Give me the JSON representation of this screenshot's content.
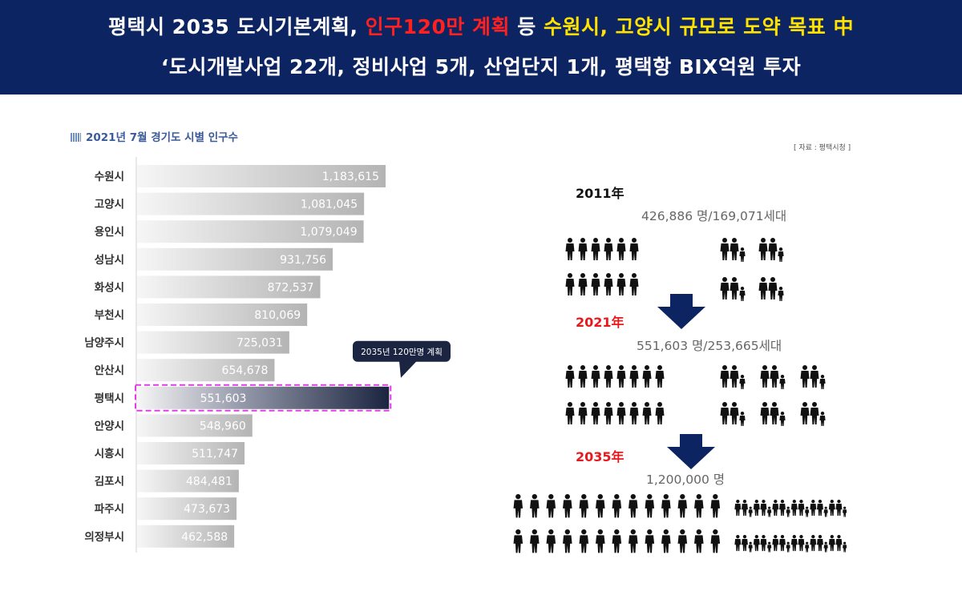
{
  "banner": {
    "line1_a": "평택시 2035 도시기본계획, ",
    "line1_b": "인구120만 계획",
    "line1_c": " 등 ",
    "line1_d": "수원시, 고양시 규모로 도약 목표 中",
    "line2": "‘도시개발사업 22개, 정비사업 5개, 산업단지 1개, 평택항 BIX억원 투자"
  },
  "source": "[ 자료 : 평택시청 ]",
  "chart_data": {
    "type": "bar",
    "orientation": "horizontal",
    "title": "2021년 7월 경기도 시별 인구수",
    "categories": [
      "수원시",
      "고양시",
      "용인시",
      "성남시",
      "화성시",
      "부천시",
      "남양주시",
      "안산시",
      "평택시",
      "안양시",
      "시흥시",
      "김포시",
      "파주시",
      "의정부시"
    ],
    "values": [
      1183615,
      1081045,
      1079049,
      931756,
      872537,
      810069,
      725031,
      654678,
      551603,
      548960,
      511747,
      484481,
      473673,
      462588
    ],
    "value_labels": [
      "1,183,615",
      "1,081,045",
      "1,079,049",
      "931,756",
      "872,537",
      "810,069",
      "725,031",
      "654,678",
      "551,603",
      "548,960",
      "511,747",
      "484,481",
      "473,673",
      "462,588"
    ],
    "highlight": {
      "category": "평택시",
      "target_value": 1200000,
      "callout": "2035년 120만명 계획"
    },
    "colors": {
      "bar": "#b4b4b4",
      "highlight_dark": "#1b2440",
      "highlight_border": "#e23be6",
      "callout": "#1b2440"
    }
  },
  "timeline": [
    {
      "year": "2011年",
      "stat": "426,886 명/169,071세대",
      "singles": 12,
      "families": 4
    },
    {
      "year": "2021年",
      "stat": "551,603 명/253,665세대",
      "singles": 16,
      "families": 6
    },
    {
      "year": "2035年",
      "stat": "1,200,000 명",
      "singles": 26,
      "families": 12
    }
  ],
  "colors": {
    "banner": "#0c2461",
    "year_black": "#111111",
    "year_red": "#e8191c",
    "arrow": "#0c2461",
    "person": "#111111"
  }
}
